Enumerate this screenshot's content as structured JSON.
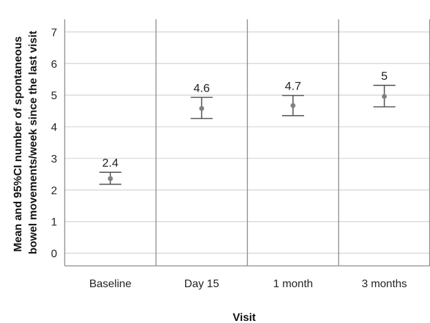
{
  "chart_data": {
    "type": "scatter",
    "title": "",
    "xlabel": "Visit",
    "ylabel_lines": [
      "Mean and 95%CI number of spontaneous",
      "bowel movements/week since the last visit"
    ],
    "categories": [
      "Baseline",
      "Day 15",
      "1 month",
      "3 months"
    ],
    "means": [
      2.36,
      4.58,
      4.67,
      4.96
    ],
    "ci_lower": [
      2.18,
      4.26,
      4.35,
      4.63
    ],
    "ci_upper": [
      2.56,
      4.93,
      4.99,
      5.31
    ],
    "data_labels": [
      "2.4",
      "4.6",
      "4.7",
      "5"
    ],
    "ylim": [
      -0.4,
      7.4
    ],
    "yticks": [
      0,
      1,
      2,
      3,
      4,
      5,
      6,
      7
    ],
    "ytick_labels": [
      "0",
      "1",
      "2",
      "3",
      "4",
      "5",
      "6",
      "7"
    ],
    "grid": true,
    "legend": "none",
    "colors": {
      "point": "#808080",
      "errorbar": "#555555",
      "grid": "#d3d3d3",
      "panel_border": "#888888"
    }
  }
}
